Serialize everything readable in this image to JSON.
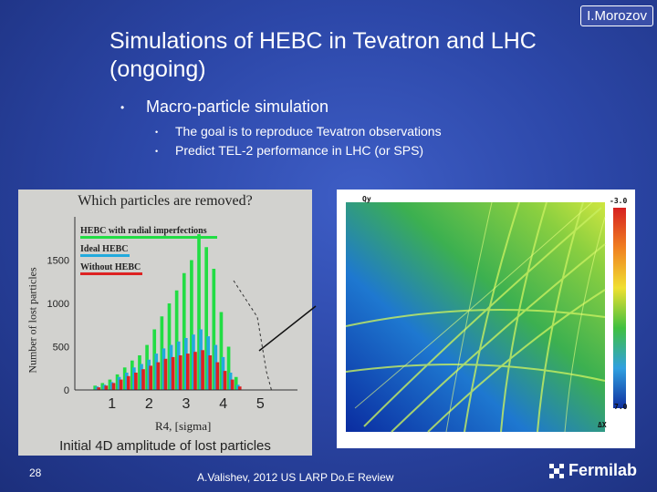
{
  "slide": {
    "title": "Simulations of HEBC in Tevatron and LHC (ongoing)",
    "author_badge": "I.Morozov",
    "bullet_main": "Macro-particle simulation",
    "sub_bullets": [
      "The goal is to reproduce Tevatron observations",
      "Predict TEL-2 performance in LHC (or SPS)"
    ],
    "slide_number": "28",
    "footer": "A.Valishev, 2012 US LARP Do.E Review",
    "logo_text": "Fermilab"
  },
  "histogram": {
    "title": "Which particles are removed?",
    "ylabel": "Number of lost particles",
    "xlabel": "R4, [sigma]",
    "caption": "Initial 4D amplitude of lost particles",
    "legend": [
      {
        "name": "HEBC with radial imperfections",
        "color": "#22dd44"
      },
      {
        "name": "Ideal HEBC",
        "color": "#22aadd"
      },
      {
        "name": "Without HEBC",
        "color": "#dd2222"
      }
    ],
    "y_tick_labels": [
      "0",
      "500",
      "1000",
      "1500"
    ],
    "x_tick_labels": [
      "1",
      "2",
      "3",
      "4",
      "5"
    ]
  },
  "chart_data": {
    "type": "bar",
    "title": "Which particles are removed?",
    "xlabel": "R4, [sigma]",
    "ylabel": "Number of lost particles",
    "xlim": [
      0,
      6
    ],
    "ylim": [
      0,
      2000
    ],
    "x": [
      0.6,
      0.8,
      1.0,
      1.2,
      1.4,
      1.6,
      1.8,
      2.0,
      2.2,
      2.4,
      2.6,
      2.8,
      3.0,
      3.2,
      3.4,
      3.6,
      3.8,
      4.0,
      4.2,
      4.4
    ],
    "series": [
      {
        "name": "HEBC with radial imperfections",
        "color": "#22dd44",
        "values": [
          50,
          80,
          120,
          180,
          260,
          340,
          400,
          520,
          700,
          850,
          1000,
          1150,
          1350,
          1500,
          1800,
          1650,
          1400,
          900,
          500,
          150
        ]
      },
      {
        "name": "Ideal HEBC",
        "color": "#22aadd",
        "values": [
          40,
          60,
          90,
          150,
          200,
          260,
          300,
          350,
          420,
          480,
          520,
          560,
          600,
          640,
          700,
          620,
          520,
          380,
          200,
          60
        ]
      },
      {
        "name": "Without HEBC",
        "color": "#dd2222",
        "values": [
          30,
          50,
          80,
          120,
          160,
          200,
          240,
          280,
          320,
          360,
          380,
          400,
          420,
          440,
          460,
          400,
          320,
          220,
          120,
          40
        ]
      }
    ]
  },
  "freq_map": {
    "ylabel": "Qy",
    "xlabel": "ΔX",
    "top_colorbar_label": "-3.0",
    "bottom_colorbar_label": "7.0",
    "colorbar_colors": [
      "#d62020",
      "#f08020",
      "#f0e030",
      "#40c040",
      "#30a0e0",
      "#1030a0"
    ]
  }
}
